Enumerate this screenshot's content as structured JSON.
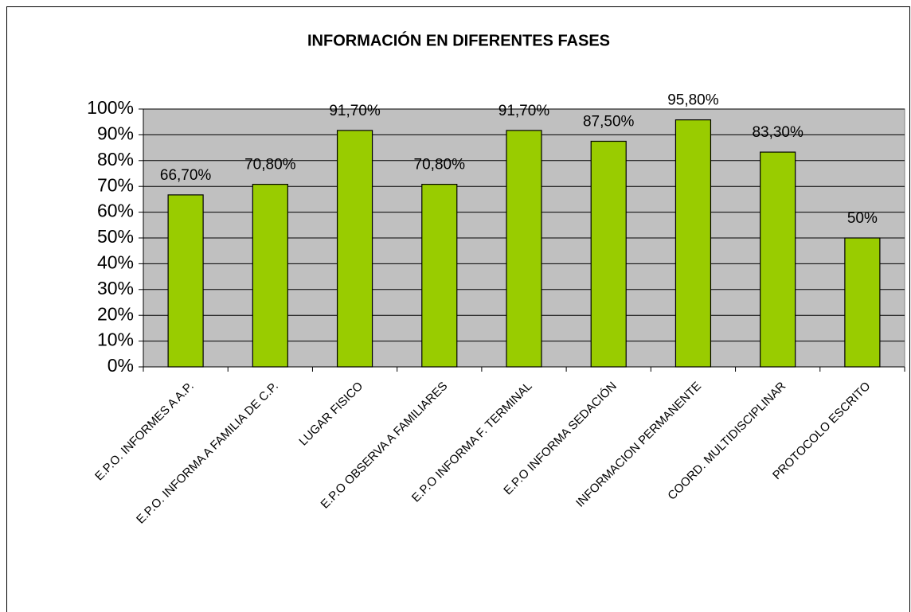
{
  "chart_data": {
    "type": "bar",
    "title": "INFORMACIÓN EN DIFERENTES FASES",
    "categories": [
      "E.P.O. INFORMES A A.P.",
      "E.P.O. INFORMA A FAMILIA DE C.P.",
      "LUGAR FISICO",
      "E.P.O OBSERVA A FAMILIARES",
      "E.P.O INFORMA F. TERMINAL",
      "E.P.O INFORMA SEDACIÓN",
      "INFORMACION PERMANENTE",
      "COORD. MULTIDISCIPLINAR",
      "PROTOCOLO ESCRITO"
    ],
    "values": [
      66.7,
      70.8,
      91.7,
      70.8,
      91.7,
      87.5,
      95.8,
      83.3,
      50
    ],
    "value_labels": [
      "66,70%",
      "70,80%",
      "91,70%",
      "70,80%",
      "91,70%",
      "87,50%",
      "95,80%",
      "83,30%",
      "50%"
    ],
    "color": "#99cc00",
    "ylim": [
      0,
      100
    ],
    "yticks": [
      {
        "value": 0,
        "label": "0%"
      },
      {
        "value": 10,
        "label": "10%"
      },
      {
        "value": 20,
        "label": "20%"
      },
      {
        "value": 30,
        "label": "30%"
      },
      {
        "value": 40,
        "label": "40%"
      },
      {
        "value": 50,
        "label": "50%"
      },
      {
        "value": 60,
        "label": "60%"
      },
      {
        "value": 70,
        "label": "70%"
      },
      {
        "value": 80,
        "label": "80%"
      },
      {
        "value": 90,
        "label": "90%"
      },
      {
        "value": 100,
        "label": "100%"
      }
    ],
    "grid": true
  }
}
